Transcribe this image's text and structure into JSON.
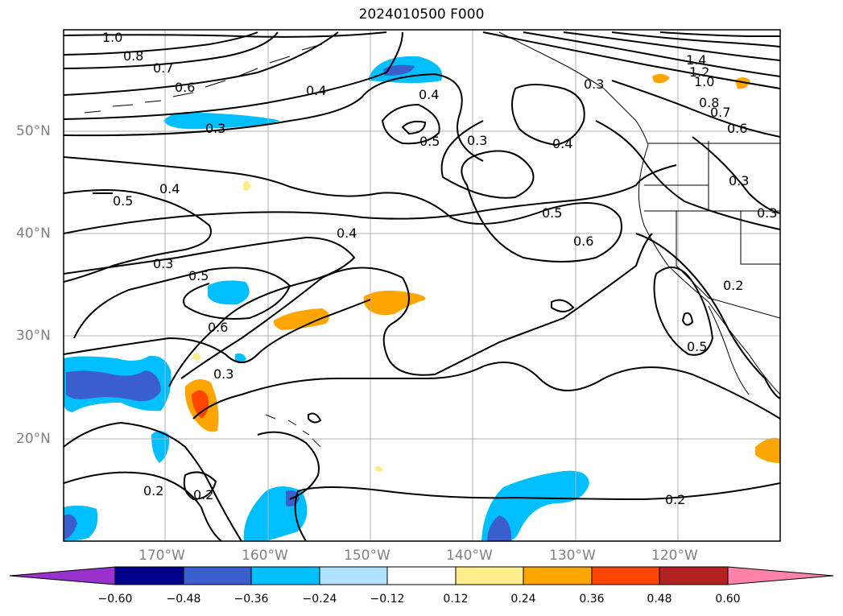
{
  "title": "2024010500 F000",
  "map": {
    "lat_labels": [
      "50°N",
      "40°N",
      "30°N",
      "20°N"
    ],
    "lon_labels": [
      "170°W",
      "160°W",
      "150°W",
      "140°W",
      "130°W",
      "120°W"
    ],
    "contour_labels": [
      "1.0",
      "0.8",
      "0.7",
      "0.6",
      "0.4",
      "0.3",
      "0.4",
      "0.5",
      "0.3",
      "0.3",
      "0.4",
      "1.4",
      "1.2",
      "1.0",
      "0.8",
      "0.7",
      "0.6",
      "0.3",
      "0.5",
      "0.4",
      "0.4",
      "0.5",
      "0.6",
      "0.3",
      "0.5",
      "0.6",
      "0.3",
      "0.2",
      "0.2",
      "0.2",
      "0.2",
      "0.5",
      "0.3"
    ]
  },
  "colorbar": {
    "ticks": [
      "−0.60",
      "−0.48",
      "−0.36",
      "−0.24",
      "−0.12",
      "0.12",
      "0.24",
      "0.36",
      "0.48",
      "0.60"
    ],
    "colors": [
      "#9932cc",
      "#00008b",
      "#3a5fcd",
      "#00bfff",
      "#b0e2ff",
      "#ffffff",
      "#ffec8b",
      "#ffa500",
      "#ff4500",
      "#b22222",
      "#ff82ab"
    ]
  }
}
